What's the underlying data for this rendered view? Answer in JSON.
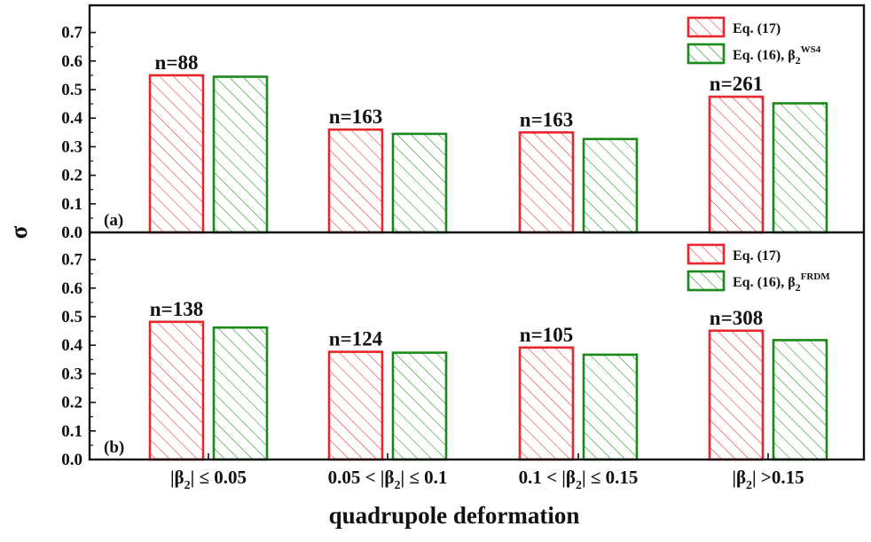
{
  "chart_data": {
    "type": "bar",
    "ylabel": "σ",
    "xlabel": "quadrupole deformation",
    "categories": [
      {
        "parts": [
          {
            "t": "|β"
          },
          {
            "t": "2",
            "sub": true
          },
          {
            "t": "| ≤  0.05"
          }
        ]
      },
      {
        "parts": [
          {
            "t": "0.05 < |β"
          },
          {
            "t": "2",
            "sub": true
          },
          {
            "t": "| ≤ 0.1"
          }
        ]
      },
      {
        "parts": [
          {
            "t": "0.1 < |β"
          },
          {
            "t": "2",
            "sub": true
          },
          {
            "t": "| ≤ 0.15"
          }
        ]
      },
      {
        "parts": [
          {
            "t": "|β"
          },
          {
            "t": "2",
            "sub": true
          },
          {
            "t": "| >0.15"
          }
        ]
      }
    ],
    "yticks": [
      "0.0",
      "0.1",
      "0.2",
      "0.3",
      "0.4",
      "0.5",
      "0.6",
      "0.7"
    ],
    "ylim": [
      0,
      0.8
    ],
    "colors": {
      "eq17": "#e8262d",
      "eq16": "#1a8a1a"
    },
    "panels": [
      {
        "label": "(a)",
        "series": [
          {
            "key": "eq17",
            "name": "Eq. (17)",
            "values": [
              0.55,
              0.36,
              0.35,
              0.475
            ]
          },
          {
            "key": "eq16",
            "name_main": "Eq. (16), β",
            "name_sub": "2",
            "name_sup": "WS4",
            "values": [
              0.545,
              0.345,
              0.327,
              0.452
            ]
          }
        ],
        "counts": [
          "n=88",
          "n=163",
          "n=163",
          "n=261"
        ]
      },
      {
        "label": "(b)",
        "series": [
          {
            "key": "eq17",
            "name": "Eq. (17)",
            "values": [
              0.482,
              0.377,
              0.392,
              0.451
            ]
          },
          {
            "key": "eq16",
            "name_main": "Eq. (16), β",
            "name_sub": "2",
            "name_sup": "FRDM",
            "values": [
              0.462,
              0.374,
              0.367,
              0.418
            ]
          }
        ],
        "counts": [
          "n=138",
          "n=124",
          "n=105",
          "n=308"
        ]
      }
    ]
  }
}
